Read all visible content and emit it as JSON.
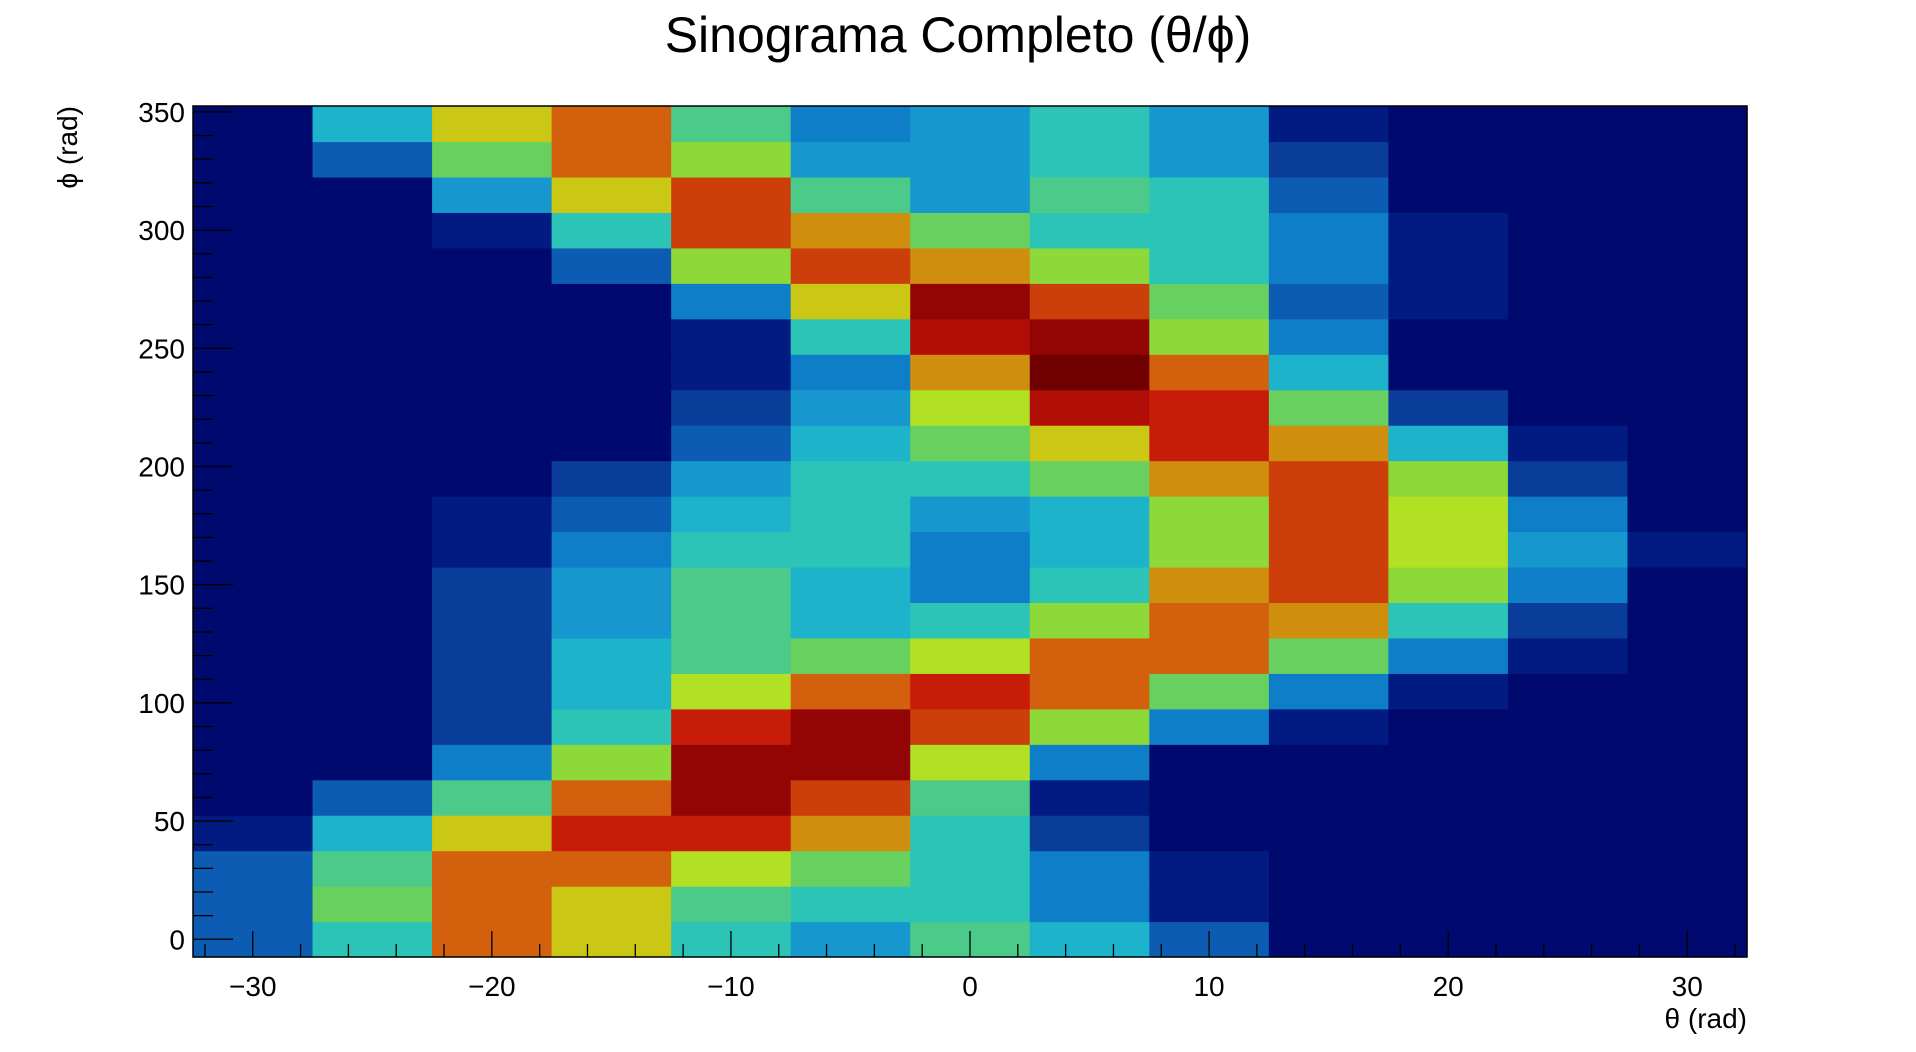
{
  "chart_data": {
    "type": "heatmap",
    "title": "Sinograma Completo (θ/ϕ)",
    "xlabel": "θ (rad)",
    "ylabel": "ϕ (rad)",
    "xlim": [
      -32.5,
      32.5
    ],
    "ylim": [
      -7.5,
      352.5
    ],
    "x_bins": {
      "start": -32.5,
      "width": 5,
      "count": 13
    },
    "y_bins": {
      "start": -7.5,
      "width": 15,
      "count": 24
    },
    "x_ticks": [
      -30,
      -20,
      -10,
      0,
      10,
      20,
      30
    ],
    "x_tick_labels": [
      "−30",
      "−20",
      "−10",
      "0",
      "10",
      "20",
      "30"
    ],
    "y_ticks": [
      0,
      50,
      100,
      150,
      200,
      250,
      300,
      350
    ],
    "y_tick_labels": [
      "0",
      "50",
      "100",
      "150",
      "200",
      "250",
      "300",
      "350"
    ],
    "colormap": [
      "#000a6e",
      "#021b82",
      "#0a3d9a",
      "#0d5cb3",
      "#0e7ec9",
      "#1697cd",
      "#1cb3cb",
      "#2cc4b6",
      "#4cca8a",
      "#67d05e",
      "#8ed93a",
      "#b2e123",
      "#cac814",
      "#cf8e0e",
      "#d2600d",
      "#cc3f0a",
      "#c71d08",
      "#b00d06",
      "#930505",
      "#700000"
    ],
    "grid": false,
    "legend": "none",
    "values": [
      [
        3,
        7,
        14,
        12,
        7,
        5,
        8,
        6,
        3,
        0,
        0,
        0,
        0
      ],
      [
        3,
        9,
        14,
        12,
        8,
        7,
        7,
        4,
        1,
        0,
        0,
        0,
        0
      ],
      [
        3,
        8,
        14,
        14,
        11,
        9,
        7,
        4,
        1,
        0,
        0,
        0,
        0
      ],
      [
        1,
        6,
        12,
        16,
        16,
        13,
        7,
        2,
        0,
        0,
        0,
        0,
        0
      ],
      [
        0,
        3,
        8,
        14,
        18,
        15,
        8,
        1,
        0,
        0,
        0,
        0,
        0
      ],
      [
        0,
        0,
        4,
        10,
        18,
        18,
        11,
        4,
        0,
        0,
        0,
        0,
        0
      ],
      [
        0,
        0,
        2,
        7,
        16,
        18,
        15,
        10,
        4,
        1,
        0,
        0,
        0
      ],
      [
        0,
        0,
        2,
        6,
        11,
        14,
        16,
        14,
        9,
        4,
        1,
        0,
        0
      ],
      [
        0,
        0,
        2,
        6,
        8,
        9,
        11,
        14,
        14,
        9,
        4,
        1,
        0
      ],
      [
        0,
        0,
        2,
        5,
        8,
        6,
        7,
        10,
        14,
        13,
        7,
        2,
        0
      ],
      [
        0,
        0,
        2,
        5,
        8,
        6,
        4,
        7,
        13,
        15,
        10,
        4,
        0
      ],
      [
        0,
        0,
        1,
        4,
        7,
        7,
        4,
        6,
        10,
        15,
        11,
        5,
        1
      ],
      [
        0,
        0,
        1,
        3,
        6,
        7,
        5,
        6,
        10,
        15,
        11,
        4,
        0
      ],
      [
        0,
        0,
        0,
        2,
        5,
        7,
        7,
        9,
        13,
        15,
        10,
        2,
        0
      ],
      [
        0,
        0,
        0,
        0,
        3,
        6,
        9,
        12,
        16,
        13,
        6,
        1,
        0
      ],
      [
        0,
        0,
        0,
        0,
        2,
        5,
        11,
        17,
        16,
        9,
        2,
        0,
        0
      ],
      [
        0,
        0,
        0,
        0,
        1,
        4,
        13,
        19,
        14,
        6,
        0,
        0,
        0
      ],
      [
        0,
        0,
        0,
        0,
        1,
        7,
        17,
        18,
        10,
        4,
        0,
        0,
        0
      ],
      [
        0,
        0,
        0,
        0,
        4,
        12,
        18,
        15,
        9,
        3,
        1,
        0,
        0
      ],
      [
        0,
        0,
        0,
        3,
        10,
        15,
        13,
        10,
        7,
        4,
        1,
        0,
        0
      ],
      [
        0,
        0,
        1,
        7,
        15,
        13,
        9,
        7,
        7,
        4,
        1,
        0,
        0
      ],
      [
        0,
        0,
        5,
        12,
        15,
        8,
        5,
        8,
        7,
        3,
        0,
        0,
        0
      ],
      [
        0,
        3,
        9,
        14,
        10,
        5,
        5,
        7,
        5,
        2,
        0,
        0,
        0
      ],
      [
        0,
        6,
        12,
        14,
        8,
        4,
        5,
        7,
        5,
        1,
        0,
        0,
        0
      ]
    ]
  }
}
